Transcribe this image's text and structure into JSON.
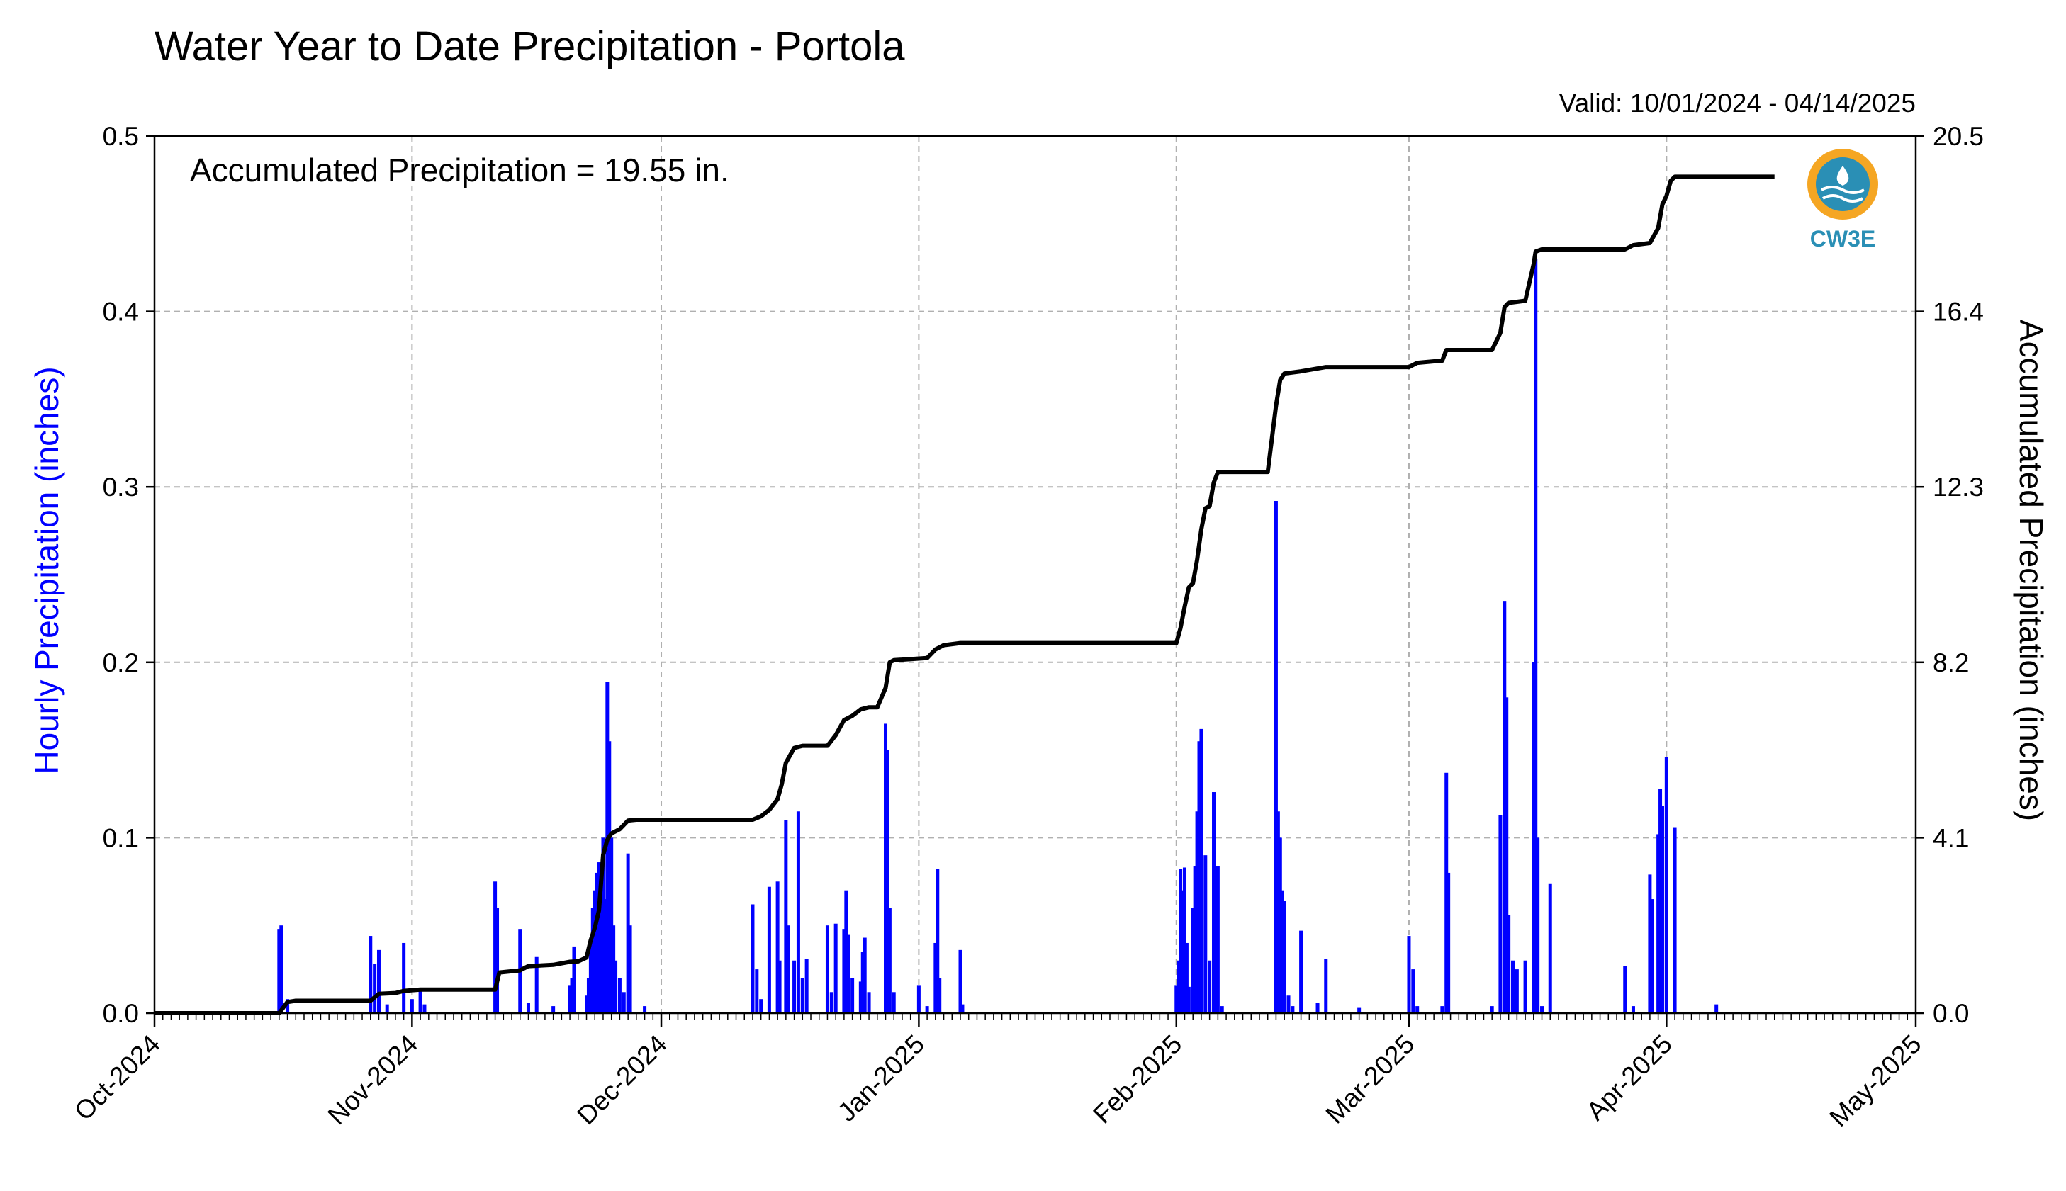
{
  "chart_data": {
    "type": "bar",
    "title": "Water Year to Date Precipitation - Portola",
    "valid_text": "Valid: 10/01/2024 - 04/14/2025",
    "annotation": "Accumulated Precipitation = 19.55 in.",
    "logo_text": "CW3E",
    "ylabel": "Hourly Precipitation (inches)",
    "ylabel_right": "Accumulated Precipitation (inches)",
    "x_range": [
      "2024-10-01",
      "2025-05-01"
    ],
    "xticks": [
      {
        "date": "2024-10-01",
        "label": "Oct-2024"
      },
      {
        "date": "2024-11-01",
        "label": "Nov-2024"
      },
      {
        "date": "2024-12-01",
        "label": "Dec-2024"
      },
      {
        "date": "2025-01-01",
        "label": "Jan-2025"
      },
      {
        "date": "2025-02-01",
        "label": "Feb-2025"
      },
      {
        "date": "2025-03-01",
        "label": "Mar-2025"
      },
      {
        "date": "2025-04-01",
        "label": "Apr-2025"
      },
      {
        "date": "2025-05-01",
        "label": "May-2025"
      }
    ],
    "ylim": [
      0,
      0.5
    ],
    "yticks": [
      "0.0",
      "0.1",
      "0.2",
      "0.3",
      "0.4",
      "0.5"
    ],
    "ylim_right": [
      0,
      20.5
    ],
    "yticks_right": [
      "0.0",
      "4.1",
      "8.2",
      "12.3",
      "16.4",
      "20.5"
    ],
    "grid": true,
    "colors": {
      "hourly": "#0000ff",
      "accumulated": "#000000",
      "logo": "#2a8fb5",
      "logo_sun": "#f5a623"
    },
    "series": [
      {
        "name": "Hourly Precipitation",
        "axis": "left",
        "points": [
          [
            "2024-10-16",
            0.048
          ],
          [
            "2024-10-16T06",
            0.05
          ],
          [
            "2024-10-17",
            0.008
          ],
          [
            "2024-10-27",
            0.044
          ],
          [
            "2024-10-27T12",
            0.028
          ],
          [
            "2024-10-28",
            0.036
          ],
          [
            "2024-10-29",
            0.005
          ],
          [
            "2024-10-31",
            0.04
          ],
          [
            "2024-11-01",
            0.008
          ],
          [
            "2024-11-02",
            0.014
          ],
          [
            "2024-11-02T12",
            0.005
          ],
          [
            "2024-11-11",
            0.075
          ],
          [
            "2024-11-11T06",
            0.06
          ],
          [
            "2024-11-14",
            0.048
          ],
          [
            "2024-11-15",
            0.006
          ],
          [
            "2024-11-16",
            0.032
          ],
          [
            "2024-11-18",
            0.004
          ],
          [
            "2024-11-20",
            0.016
          ],
          [
            "2024-11-20T06",
            0.02
          ],
          [
            "2024-11-20T12",
            0.038
          ],
          [
            "2024-11-22",
            0.01
          ],
          [
            "2024-11-22T06",
            0.02
          ],
          [
            "2024-11-22T12",
            0.04
          ],
          [
            "2024-11-22T18",
            0.06
          ],
          [
            "2024-11-23",
            0.07
          ],
          [
            "2024-11-23T06",
            0.08
          ],
          [
            "2024-11-23T12",
            0.086
          ],
          [
            "2024-11-23T18",
            0.07
          ],
          [
            "2024-11-24",
            0.1
          ],
          [
            "2024-11-24T06",
            0.065
          ],
          [
            "2024-11-24T12",
            0.189
          ],
          [
            "2024-11-24T18",
            0.155
          ],
          [
            "2024-11-25",
            0.1
          ],
          [
            "2024-11-25T06",
            0.05
          ],
          [
            "2024-11-25T12",
            0.03
          ],
          [
            "2024-11-26",
            0.02
          ],
          [
            "2024-11-26T12",
            0.012
          ],
          [
            "2024-11-27",
            0.091
          ],
          [
            "2024-11-27T06",
            0.05
          ],
          [
            "2024-11-29",
            0.004
          ],
          [
            "2024-12-12",
            0.062
          ],
          [
            "2024-12-12T12",
            0.025
          ],
          [
            "2024-12-13",
            0.008
          ],
          [
            "2024-12-14",
            0.072
          ],
          [
            "2024-12-15",
            0.075
          ],
          [
            "2024-12-15T06",
            0.03
          ],
          [
            "2024-12-16",
            0.11
          ],
          [
            "2024-12-16T06",
            0.05
          ],
          [
            "2024-12-17",
            0.03
          ],
          [
            "2024-12-17T12",
            0.115
          ],
          [
            "2024-12-18",
            0.02
          ],
          [
            "2024-12-18T12",
            0.031
          ],
          [
            "2024-12-21",
            0.05
          ],
          [
            "2024-12-21T12",
            0.012
          ],
          [
            "2024-12-22",
            0.051
          ],
          [
            "2024-12-23",
            0.048
          ],
          [
            "2024-12-23T06",
            0.07
          ],
          [
            "2024-12-23T12",
            0.045
          ],
          [
            "2024-12-24",
            0.02
          ],
          [
            "2024-12-25",
            0.018
          ],
          [
            "2024-12-25T06",
            0.035
          ],
          [
            "2024-12-25T12",
            0.043
          ],
          [
            "2024-12-26",
            0.012
          ],
          [
            "2024-12-28",
            0.165
          ],
          [
            "2024-12-28T06",
            0.15
          ],
          [
            "2024-12-28T12",
            0.06
          ],
          [
            "2024-12-29",
            0.012
          ],
          [
            "2025-01-01",
            0.016
          ],
          [
            "2025-01-02",
            0.004
          ],
          [
            "2025-01-03",
            0.04
          ],
          [
            "2025-01-03T06",
            0.082
          ],
          [
            "2025-01-03T12",
            0.02
          ],
          [
            "2025-01-06",
            0.036
          ],
          [
            "2025-01-06T06",
            0.005
          ],
          [
            "2025-02-01",
            0.016
          ],
          [
            "2025-02-01T06",
            0.03
          ],
          [
            "2025-02-01T12",
            0.082
          ],
          [
            "2025-02-01T18",
            0.07
          ],
          [
            "2025-02-02",
            0.083
          ],
          [
            "2025-02-02T06",
            0.04
          ],
          [
            "2025-02-02T12",
            0.015
          ],
          [
            "2025-02-03",
            0.06
          ],
          [
            "2025-02-03T06",
            0.084
          ],
          [
            "2025-02-03T12",
            0.115
          ],
          [
            "2025-02-03T18",
            0.155
          ],
          [
            "2025-02-04",
            0.162
          ],
          [
            "2025-02-04T12",
            0.09
          ],
          [
            "2025-02-05",
            0.03
          ],
          [
            "2025-02-05T12",
            0.126
          ],
          [
            "2025-02-06",
            0.084
          ],
          [
            "2025-02-06T12",
            0.004
          ],
          [
            "2025-02-13",
            0.292
          ],
          [
            "2025-02-13T06",
            0.115
          ],
          [
            "2025-02-13T12",
            0.1
          ],
          [
            "2025-02-13T18",
            0.07
          ],
          [
            "2025-02-14",
            0.064
          ],
          [
            "2025-02-14T12",
            0.01
          ],
          [
            "2025-02-15",
            0.004
          ],
          [
            "2025-02-16",
            0.047
          ],
          [
            "2025-02-18",
            0.006
          ],
          [
            "2025-02-19",
            0.031
          ],
          [
            "2025-02-23",
            0.003
          ],
          [
            "2025-03-01",
            0.044
          ],
          [
            "2025-03-01T12",
            0.025
          ],
          [
            "2025-03-02",
            0.004
          ],
          [
            "2025-03-05",
            0.004
          ],
          [
            "2025-03-05T12",
            0.137
          ],
          [
            "2025-03-05T18",
            0.08
          ],
          [
            "2025-03-11",
            0.004
          ],
          [
            "2025-03-12",
            0.113
          ],
          [
            "2025-03-12T12",
            0.235
          ],
          [
            "2025-03-12T18",
            0.18
          ],
          [
            "2025-03-13",
            0.056
          ],
          [
            "2025-03-13T12",
            0.03
          ],
          [
            "2025-03-14",
            0.025
          ],
          [
            "2025-03-15",
            0.03
          ],
          [
            "2025-03-16",
            0.2
          ],
          [
            "2025-03-16T06",
            0.43
          ],
          [
            "2025-03-16T12",
            0.1
          ],
          [
            "2025-03-17",
            0.004
          ],
          [
            "2025-03-18",
            0.074
          ],
          [
            "2025-03-27",
            0.027
          ],
          [
            "2025-03-28",
            0.004
          ],
          [
            "2025-03-30",
            0.079
          ],
          [
            "2025-03-30T06",
            0.065
          ],
          [
            "2025-03-31",
            0.102
          ],
          [
            "2025-03-31T06",
            0.128
          ],
          [
            "2025-03-31T12",
            0.118
          ],
          [
            "2025-04-01",
            0.146
          ],
          [
            "2025-04-02",
            0.106
          ],
          [
            "2025-04-07",
            0.005
          ]
        ]
      },
      {
        "name": "Accumulated Precipitation",
        "axis": "right",
        "points": [
          [
            "2024-10-01",
            0.0
          ],
          [
            "2024-10-16",
            0.0
          ],
          [
            "2024-10-17",
            0.26
          ],
          [
            "2024-10-18",
            0.29
          ],
          [
            "2024-10-27",
            0.29
          ],
          [
            "2024-10-28",
            0.45
          ],
          [
            "2024-10-30",
            0.47
          ],
          [
            "2024-10-31",
            0.52
          ],
          [
            "2024-11-02",
            0.55
          ],
          [
            "2024-11-11",
            0.55
          ],
          [
            "2024-11-11T12",
            0.95
          ],
          [
            "2024-11-14",
            1.0
          ],
          [
            "2024-11-15",
            1.1
          ],
          [
            "2024-11-18",
            1.13
          ],
          [
            "2024-11-20",
            1.2
          ],
          [
            "2024-11-21",
            1.21
          ],
          [
            "2024-11-22",
            1.3
          ],
          [
            "2024-11-22T12",
            1.7
          ],
          [
            "2024-11-23",
            2.0
          ],
          [
            "2024-11-23T12",
            2.4
          ],
          [
            "2024-11-24",
            3.7
          ],
          [
            "2024-11-24T12",
            4.05
          ],
          [
            "2024-11-25",
            4.2
          ],
          [
            "2024-11-26",
            4.3
          ],
          [
            "2024-11-27",
            4.5
          ],
          [
            "2024-11-28",
            4.52
          ],
          [
            "2024-12-12",
            4.52
          ],
          [
            "2024-12-13",
            4.6
          ],
          [
            "2024-12-14",
            4.75
          ],
          [
            "2024-12-15",
            5.0
          ],
          [
            "2024-12-15T12",
            5.35
          ],
          [
            "2024-12-16",
            5.85
          ],
          [
            "2024-12-17",
            6.2
          ],
          [
            "2024-12-18",
            6.25
          ],
          [
            "2024-12-21",
            6.25
          ],
          [
            "2024-12-22",
            6.5
          ],
          [
            "2024-12-23",
            6.85
          ],
          [
            "2024-12-24",
            6.95
          ],
          [
            "2024-12-25",
            7.1
          ],
          [
            "2024-12-26",
            7.15
          ],
          [
            "2024-12-27",
            7.15
          ],
          [
            "2024-12-28",
            7.6
          ],
          [
            "2024-12-28T12",
            8.2
          ],
          [
            "2024-12-29",
            8.25
          ],
          [
            "2025-01-02",
            8.3
          ],
          [
            "2025-01-03",
            8.5
          ],
          [
            "2025-01-04",
            8.6
          ],
          [
            "2025-01-06",
            8.65
          ],
          [
            "2025-02-01",
            8.65
          ],
          [
            "2025-02-01T12",
            9.0
          ],
          [
            "2025-02-02",
            9.5
          ],
          [
            "2025-02-02T12",
            9.95
          ],
          [
            "2025-02-03",
            10.05
          ],
          [
            "2025-02-03T12",
            10.6
          ],
          [
            "2025-02-04",
            11.3
          ],
          [
            "2025-02-04T12",
            11.8
          ],
          [
            "2025-02-05",
            11.85
          ],
          [
            "2025-02-05T12",
            12.4
          ],
          [
            "2025-02-06",
            12.65
          ],
          [
            "2025-02-12",
            12.65
          ],
          [
            "2025-02-13",
            14.2
          ],
          [
            "2025-02-13T12",
            14.8
          ],
          [
            "2025-02-14",
            14.95
          ],
          [
            "2025-02-16",
            15.0
          ],
          [
            "2025-02-19",
            15.1
          ],
          [
            "2025-03-01",
            15.1
          ],
          [
            "2025-03-02",
            15.2
          ],
          [
            "2025-03-05",
            15.25
          ],
          [
            "2025-03-05T12",
            15.5
          ],
          [
            "2025-03-11",
            15.5
          ],
          [
            "2025-03-12",
            15.9
          ],
          [
            "2025-03-12T12",
            16.5
          ],
          [
            "2025-03-13",
            16.6
          ],
          [
            "2025-03-15",
            16.65
          ],
          [
            "2025-03-16",
            17.5
          ],
          [
            "2025-03-16T06",
            17.8
          ],
          [
            "2025-03-17",
            17.85
          ],
          [
            "2025-03-27",
            17.85
          ],
          [
            "2025-03-28",
            17.95
          ],
          [
            "2025-03-30",
            18.0
          ],
          [
            "2025-03-31",
            18.35
          ],
          [
            "2025-03-31T12",
            18.9
          ],
          [
            "2025-04-01",
            19.1
          ],
          [
            "2025-04-01T12",
            19.45
          ],
          [
            "2025-04-02",
            19.55
          ],
          [
            "2025-04-14",
            19.55
          ]
        ]
      }
    ]
  }
}
